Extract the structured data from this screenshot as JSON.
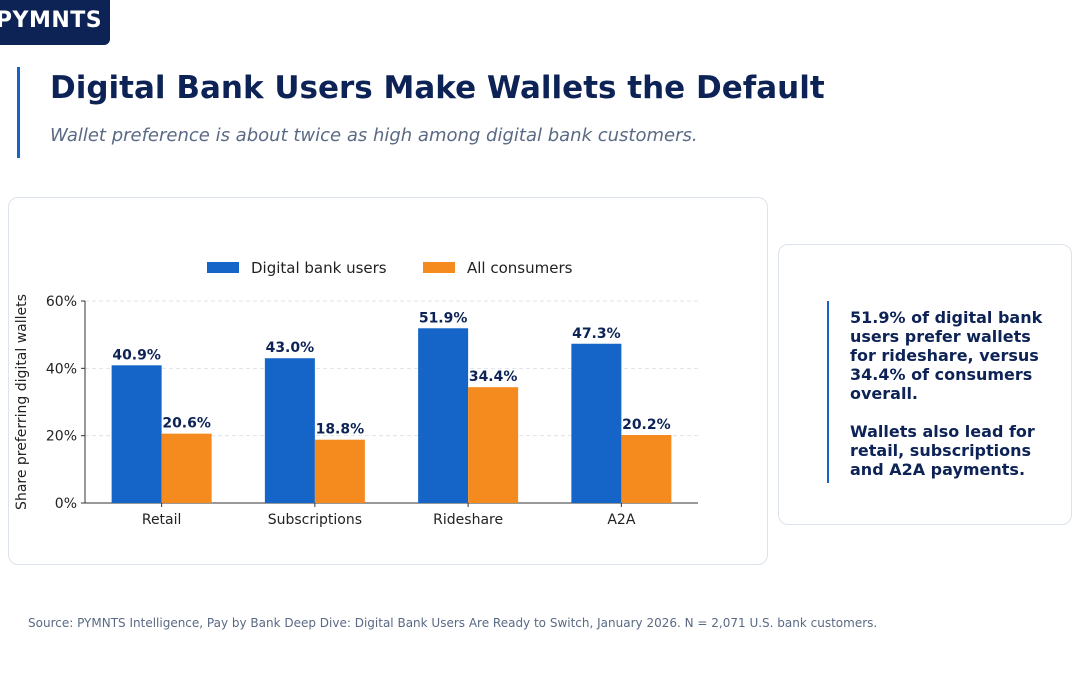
{
  "brand": {
    "logo_text": "PYMNTS",
    "navy": "#0d2356",
    "accent": "#1565c8"
  },
  "header": {
    "title": "Digital Bank Users Make Wallets the Default",
    "subtitle": "Wallet preference is about twice as high among digital bank customers."
  },
  "chart_data": {
    "type": "bar",
    "categories": [
      "Retail",
      "Subscriptions",
      "Rideshare",
      "A2A"
    ],
    "series": [
      {
        "name": "Digital bank users",
        "color": "#1565c8",
        "values": [
          40.9,
          43.0,
          51.9,
          47.3
        ],
        "labels": [
          "40.9%",
          "43.0%",
          "51.9%",
          "47.3%"
        ]
      },
      {
        "name": "All consumers",
        "color": "#f58a1f",
        "values": [
          20.6,
          18.8,
          34.4,
          20.2
        ],
        "labels": [
          "20.6%",
          "18.8%",
          "34.4%",
          "20.2%"
        ]
      }
    ],
    "ylabel": "Share preferring digital wallets",
    "ylim": [
      0,
      60
    ],
    "yticks": [
      0,
      20,
      40,
      60
    ],
    "ytick_labels": [
      "0%",
      "20%",
      "40%",
      "60%"
    ],
    "grid": true,
    "legend": "top-center"
  },
  "insight": {
    "line1": "51.9% of digital bank users prefer wallets for rideshare, versus 34.4% of consumers overall.",
    "line2": "Wallets also lead for retail, subscriptions and A2A payments."
  },
  "footer": {
    "source": "Source: PYMNTS Intelligence, Pay by Bank Deep Dive: Digital Bank Users Are Ready to Switch, January 2026. N = 2,071 U.S. bank customers."
  }
}
